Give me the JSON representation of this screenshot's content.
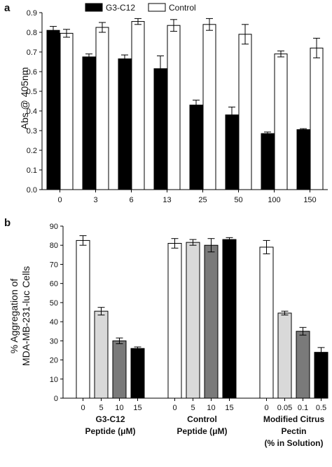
{
  "chart_data": [
    {
      "panel_label": "a",
      "type": "bar",
      "categories": [
        "0",
        "3",
        "6",
        "13",
        "25",
        "50",
        "100",
        "150"
      ],
      "series": [
        {
          "name": "G3-C12",
          "color": "#000000",
          "values": [
            0.81,
            0.675,
            0.665,
            0.615,
            0.43,
            0.38,
            0.285,
            0.305
          ],
          "errors": [
            0.02,
            0.015,
            0.02,
            0.065,
            0.025,
            0.04,
            0.008,
            0.005
          ]
        },
        {
          "name": "Control",
          "color": "#ffffff",
          "values": [
            0.795,
            0.825,
            0.855,
            0.835,
            0.84,
            0.79,
            0.69,
            0.72
          ],
          "errors": [
            0.02,
            0.025,
            0.015,
            0.03,
            0.03,
            0.05,
            0.015,
            0.05
          ]
        }
      ],
      "ylabel": "Abs @ 405nm",
      "ylim": [
        0,
        0.9
      ],
      "yticks": [
        "0.0",
        "0.1",
        "0.2",
        "0.3",
        "0.4",
        "0.5",
        "0.6",
        "0.7",
        "0.8",
        "0.9"
      ],
      "legend": "top"
    },
    {
      "panel_label": "b",
      "type": "bar",
      "ylabel_lines": [
        "% Aggregation of",
        "MDA-MB-231-luc Cells"
      ],
      "ylim": [
        0,
        90
      ],
      "yticks": [
        "0",
        "10",
        "20",
        "30",
        "40",
        "50",
        "60",
        "70",
        "80",
        "90"
      ],
      "groups": [
        {
          "label_lines": [
            "G3-C12",
            "Peptide (μM)"
          ],
          "categories": [
            "0",
            "5",
            "10",
            "15"
          ],
          "values": [
            82.5,
            45.5,
            30,
            26
          ],
          "errors": [
            2.5,
            2,
            1.5,
            0.8
          ],
          "colors": [
            "#ffffff",
            "#d9d9d9",
            "#7a7a7a",
            "#000000"
          ]
        },
        {
          "label_lines": [
            "Control",
            "Peptide (μM)"
          ],
          "categories": [
            "0",
            "5",
            "10",
            "15"
          ],
          "values": [
            81,
            81.5,
            80,
            83
          ],
          "errors": [
            2.5,
            1.5,
            3.5,
            1
          ],
          "colors": [
            "#ffffff",
            "#d9d9d9",
            "#7a7a7a",
            "#000000"
          ]
        },
        {
          "label_lines": [
            "Modified Citrus",
            "Pectin",
            "(% in Solution)"
          ],
          "categories": [
            "0",
            "0.05",
            "0.1",
            "0.5"
          ],
          "values": [
            79,
            44.5,
            35,
            24
          ],
          "errors": [
            3.5,
            1,
            2,
            2.5
          ],
          "colors": [
            "#ffffff",
            "#d9d9d9",
            "#7a7a7a",
            "#000000"
          ]
        }
      ]
    }
  ]
}
